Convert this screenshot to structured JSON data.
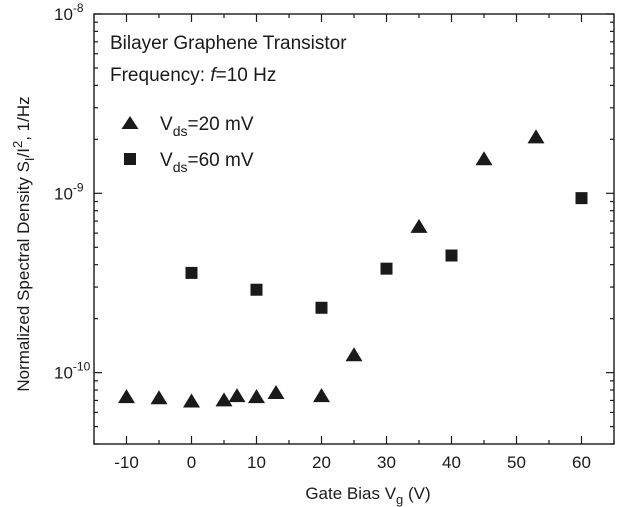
{
  "chart_data": {
    "type": "scatter",
    "annotations": {
      "line1": "Bilayer Graphene Transistor",
      "line2_prefix": "Frequency: ",
      "line2_var": "f",
      "line2_suffix": "=10 Hz"
    },
    "xlabel": {
      "text": "Gate Bias V",
      "sub": "g",
      "tail": " (V)"
    },
    "ylabel": {
      "text": "Normalized Spectral Density S",
      "sub": "I",
      "mid": "/I",
      "sup": "2",
      "tail": ", 1/Hz"
    },
    "xlim": [
      -15,
      65
    ],
    "ylim": [
      4e-11,
      1e-08
    ],
    "yscale": "log",
    "x_ticks": [
      -10,
      0,
      10,
      20,
      30,
      40,
      50,
      60
    ],
    "x_tick_labels": [
      "-10",
      "0",
      "10",
      "20",
      "30",
      "40",
      "50",
      "60"
    ],
    "y_major_ticks": [
      {
        "value": 1e-10,
        "base": "10",
        "exp": "-10"
      },
      {
        "value": 1e-09,
        "base": "10",
        "exp": "-9"
      },
      {
        "value": 1e-08,
        "base": "10",
        "exp": "-8"
      }
    ],
    "legend_position": "top-left",
    "series": [
      {
        "name_prefix": "V",
        "name_sub": "ds",
        "name_suffix": "=20 mV",
        "marker": "triangle",
        "color": "#1a1a1a",
        "x": [
          -10,
          -5,
          0,
          5,
          7,
          10,
          13,
          20,
          25,
          35,
          45,
          53
        ],
        "y": [
          7.3e-11,
          7.2e-11,
          6.9e-11,
          7e-11,
          7.4e-11,
          7.3e-11,
          7.7e-11,
          7.4e-11,
          1.25e-10,
          6.5e-10,
          1.55e-09,
          2.05e-09
        ]
      },
      {
        "name_prefix": "V",
        "name_sub": "ds",
        "name_suffix": "=60 mV",
        "marker": "square",
        "color": "#1a1a1a",
        "x": [
          0,
          10,
          20,
          30,
          40,
          60
        ],
        "y": [
          3.6e-10,
          2.9e-10,
          2.3e-10,
          3.8e-10,
          4.5e-10,
          9.4e-10
        ]
      }
    ]
  }
}
